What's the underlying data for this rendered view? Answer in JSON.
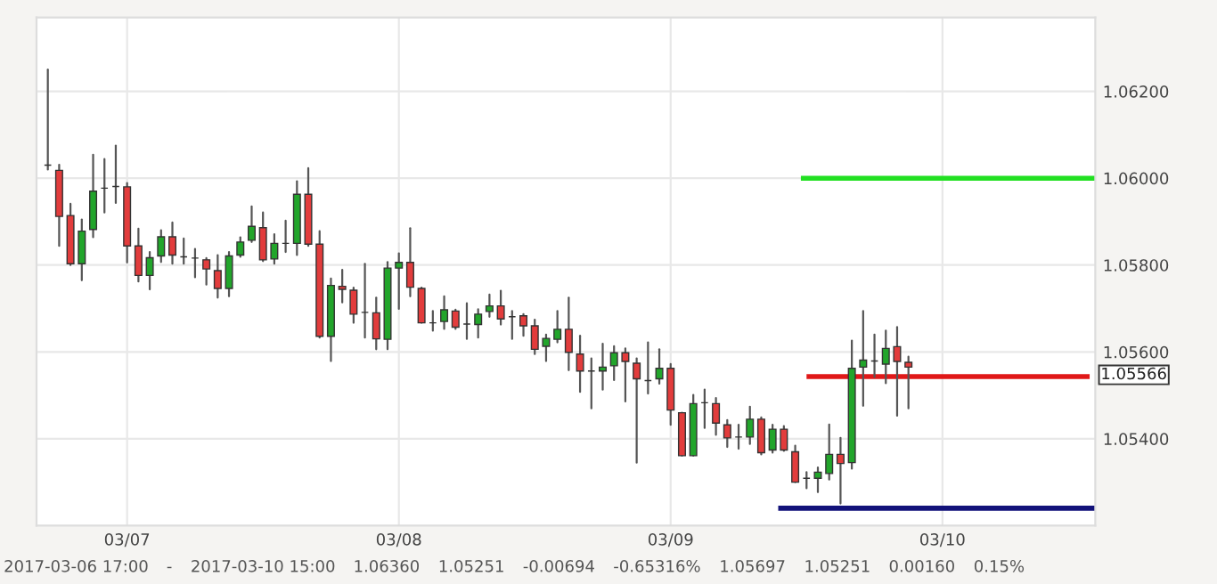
{
  "chart_data": {
    "type": "candlestick",
    "x": [
      "2017-03-06T17:00",
      "2017-03-06T18:00",
      "2017-03-06T19:00",
      "2017-03-06T20:00",
      "2017-03-06T21:00",
      "2017-03-06T22:00",
      "2017-03-06T23:00",
      "2017-03-07T00:00",
      "2017-03-07T01:00",
      "2017-03-07T02:00",
      "2017-03-07T03:00",
      "2017-03-07T04:00",
      "2017-03-07T05:00",
      "2017-03-07T06:00",
      "2017-03-07T07:00",
      "2017-03-07T08:00",
      "2017-03-07T09:00",
      "2017-03-07T10:00",
      "2017-03-07T11:00",
      "2017-03-07T12:00",
      "2017-03-07T13:00",
      "2017-03-07T14:00",
      "2017-03-07T15:00",
      "2017-03-07T16:00",
      "2017-03-07T17:00",
      "2017-03-07T18:00",
      "2017-03-07T19:00",
      "2017-03-07T20:00",
      "2017-03-07T21:00",
      "2017-03-07T22:00",
      "2017-03-07T23:00",
      "2017-03-08T00:00",
      "2017-03-08T01:00",
      "2017-03-08T02:00",
      "2017-03-08T03:00",
      "2017-03-08T04:00",
      "2017-03-08T05:00",
      "2017-03-08T06:00",
      "2017-03-08T07:00",
      "2017-03-08T08:00",
      "2017-03-08T09:00",
      "2017-03-08T10:00",
      "2017-03-08T11:00",
      "2017-03-08T12:00",
      "2017-03-08T13:00",
      "2017-03-08T14:00",
      "2017-03-08T15:00",
      "2017-03-08T16:00",
      "2017-03-08T17:00",
      "2017-03-08T18:00",
      "2017-03-08T19:00",
      "2017-03-08T20:00",
      "2017-03-08T21:00",
      "2017-03-08T22:00",
      "2017-03-08T23:00",
      "2017-03-09T00:00",
      "2017-03-09T01:00",
      "2017-03-09T02:00",
      "2017-03-09T03:00",
      "2017-03-09T04:00",
      "2017-03-09T05:00",
      "2017-03-09T06:00",
      "2017-03-09T07:00",
      "2017-03-09T08:00",
      "2017-03-09T09:00",
      "2017-03-09T10:00",
      "2017-03-09T11:00",
      "2017-03-09T12:00",
      "2017-03-09T13:00",
      "2017-03-09T14:00",
      "2017-03-09T15:00",
      "2017-03-09T16:00",
      "2017-03-09T17:00",
      "2017-03-09T18:00",
      "2017-03-09T19:00",
      "2017-03-09T20:00",
      "2017-03-09T21:00"
    ],
    "ohlc": [
      [
        1.0603,
        1.0625,
        1.0602,
        1.0603
      ],
      [
        1.06018,
        1.06031,
        1.05844,
        1.05912
      ],
      [
        1.05914,
        1.05941,
        1.058,
        1.05803
      ],
      [
        1.05803,
        1.05905,
        1.05765,
        1.05878
      ],
      [
        1.05882,
        1.06054,
        1.05864,
        1.0597
      ],
      [
        1.05977,
        1.06044,
        1.05921,
        1.05977
      ],
      [
        1.05981,
        1.06075,
        1.05943,
        1.05981
      ],
      [
        1.0598,
        1.05989,
        1.05806,
        1.05844
      ],
      [
        1.05844,
        1.05884,
        1.05762,
        1.05776
      ],
      [
        1.05776,
        1.0583,
        1.05744,
        1.05817
      ],
      [
        1.05821,
        1.0588,
        1.05807,
        1.05865
      ],
      [
        1.05865,
        1.05898,
        1.05803,
        1.05823
      ],
      [
        1.05819,
        1.05861,
        1.05803,
        1.05819
      ],
      [
        1.05816,
        1.05837,
        1.05772,
        1.05816
      ],
      [
        1.05812,
        1.05816,
        1.05755,
        1.05791
      ],
      [
        1.05787,
        1.05823,
        1.05725,
        1.05746
      ],
      [
        1.05746,
        1.0583,
        1.05728,
        1.05821
      ],
      [
        1.05823,
        1.05864,
        1.05819,
        1.05853
      ],
      [
        1.05857,
        1.05935,
        1.05853,
        1.05889
      ],
      [
        1.05886,
        1.05921,
        1.05809,
        1.05812
      ],
      [
        1.05814,
        1.05871,
        1.05803,
        1.0585
      ],
      [
        1.0585,
        1.05902,
        1.0583,
        1.0585
      ],
      [
        1.0585,
        1.05993,
        1.05823,
        1.05963
      ],
      [
        1.05963,
        1.06023,
        1.05844,
        1.05848
      ],
      [
        1.05848,
        1.05878,
        1.05633,
        1.05636
      ],
      [
        1.05636,
        1.05769,
        1.05579,
        1.05753
      ],
      [
        1.05751,
        1.05789,
        1.05714,
        1.05744
      ],
      [
        1.05742,
        1.05748,
        1.05667,
        1.05687
      ],
      [
        1.05691,
        1.05803,
        1.05633,
        1.05691
      ],
      [
        1.0569,
        1.05725,
        1.05606,
        1.0563
      ],
      [
        1.05629,
        1.05807,
        1.05606,
        1.05793
      ],
      [
        1.05793,
        1.05827,
        1.05699,
        1.05806
      ],
      [
        1.05806,
        1.05885,
        1.05728,
        1.05749
      ],
      [
        1.05746,
        1.05748,
        1.05667,
        1.05667
      ],
      [
        1.05667,
        1.05694,
        1.05649,
        1.05667
      ],
      [
        1.0567,
        1.05728,
        1.05653,
        1.05697
      ],
      [
        1.05694,
        1.05697,
        1.05653,
        1.05657
      ],
      [
        1.05664,
        1.05712,
        1.0563,
        1.05664
      ],
      [
        1.05663,
        1.05698,
        1.05633,
        1.05687
      ],
      [
        1.05693,
        1.05732,
        1.05681,
        1.05706
      ],
      [
        1.05706,
        1.05741,
        1.05663,
        1.05676
      ],
      [
        1.05681,
        1.05694,
        1.0563,
        1.05681
      ],
      [
        1.05683,
        1.05687,
        1.05637,
        1.0566
      ],
      [
        1.0566,
        1.05674,
        1.05595,
        1.05606
      ],
      [
        1.05613,
        1.0564,
        1.05579,
        1.05631
      ],
      [
        1.05629,
        1.05694,
        1.05622,
        1.05652
      ],
      [
        1.05652,
        1.05725,
        1.05558,
        1.05599
      ],
      [
        1.05595,
        1.05637,
        1.05508,
        1.05556
      ],
      [
        1.05556,
        1.05585,
        1.0547,
        1.05556
      ],
      [
        1.05556,
        1.05619,
        1.05513,
        1.05565
      ],
      [
        1.05568,
        1.05613,
        1.05535,
        1.05598
      ],
      [
        1.05598,
        1.05608,
        1.05486,
        1.05578
      ],
      [
        1.05574,
        1.05585,
        1.05345,
        1.05538
      ],
      [
        1.05534,
        1.05622,
        1.05504,
        1.05534
      ],
      [
        1.05538,
        1.05606,
        1.05527,
        1.05562
      ],
      [
        1.05562,
        1.05572,
        1.05432,
        1.05466
      ],
      [
        1.0546,
        1.0546,
        1.05361,
        1.05361
      ],
      [
        1.05361,
        1.05501,
        1.05361,
        1.05481
      ],
      [
        1.05483,
        1.05513,
        1.05425,
        1.05483
      ],
      [
        1.05481,
        1.05494,
        1.05409,
        1.05436
      ],
      [
        1.05432,
        1.05443,
        1.05381,
        1.05402
      ],
      [
        1.05404,
        1.05432,
        1.05377,
        1.05404
      ],
      [
        1.05404,
        1.05474,
        1.05388,
        1.05445
      ],
      [
        1.05445,
        1.05449,
        1.05364,
        1.05368
      ],
      [
        1.05374,
        1.05432,
        1.05368,
        1.05422
      ],
      [
        1.05422,
        1.05429,
        1.05372,
        1.05374
      ],
      [
        1.0537,
        1.05384,
        1.053,
        1.053
      ],
      [
        1.05309,
        1.05323,
        1.05286,
        1.05309
      ],
      [
        1.05309,
        1.05334,
        1.05277,
        1.05323
      ],
      [
        1.0532,
        1.05433,
        1.05306,
        1.05364
      ],
      [
        1.05364,
        1.05402,
        1.05251,
        1.05343
      ],
      [
        1.05345,
        1.05626,
        1.05331,
        1.05562
      ],
      [
        1.05565,
        1.05694,
        1.05476,
        1.05581
      ],
      [
        1.05579,
        1.0564,
        1.05542,
        1.05579
      ],
      [
        1.05572,
        1.05649,
        1.05528,
        1.05608
      ],
      [
        1.05612,
        1.05657,
        1.05453,
        1.05578
      ],
      [
        1.05576,
        1.05589,
        1.0547,
        1.05565
      ]
    ],
    "series": [
      {
        "type": "line",
        "color": "#22e022",
        "x": [
          "2017-03-09T11:30",
          "2017-03-10T13:30"
        ],
        "values": [
          1.06,
          1.06
        ]
      },
      {
        "type": "line",
        "color": "#e01818",
        "x": [
          "2017-03-09T12:00",
          "2017-03-10T13:00"
        ],
        "values": [
          1.05543,
          1.05543
        ]
      },
      {
        "type": "line",
        "color": "#12127a",
        "x": [
          "2017-03-09T09:30",
          "2017-03-10T13:30"
        ],
        "values": [
          1.0524,
          1.0524
        ]
      }
    ],
    "xlim": [
      "2017-03-06T16:00",
      "2017-03-10T13:30"
    ],
    "xticks": [
      {
        "value": "2017-03-07",
        "label": "03/07"
      },
      {
        "value": "2017-03-08",
        "label": "03/08"
      },
      {
        "value": "2017-03-09",
        "label": "03/09"
      },
      {
        "value": "2017-03-10",
        "label": "03/10"
      }
    ],
    "ylim": [
      1.052,
      1.0637
    ],
    "yticks": [
      {
        "value": 1.054,
        "label": "1.05400"
      },
      {
        "value": 1.056,
        "label": "1.05600"
      },
      {
        "value": 1.058,
        "label": "1.05800"
      },
      {
        "value": 1.06,
        "label": "1.06000"
      },
      {
        "value": 1.062,
        "label": "1.06200"
      }
    ],
    "grid": true,
    "annotations": [
      "1.05566",
      "2017-03-06 17:00",
      "-",
      "2017-03-10 15:00",
      "1.06360",
      "1.05251",
      "-0.00694",
      "-0.65316%",
      "1.05697",
      "1.05251",
      "0.00160",
      "0.15%"
    ]
  }
}
